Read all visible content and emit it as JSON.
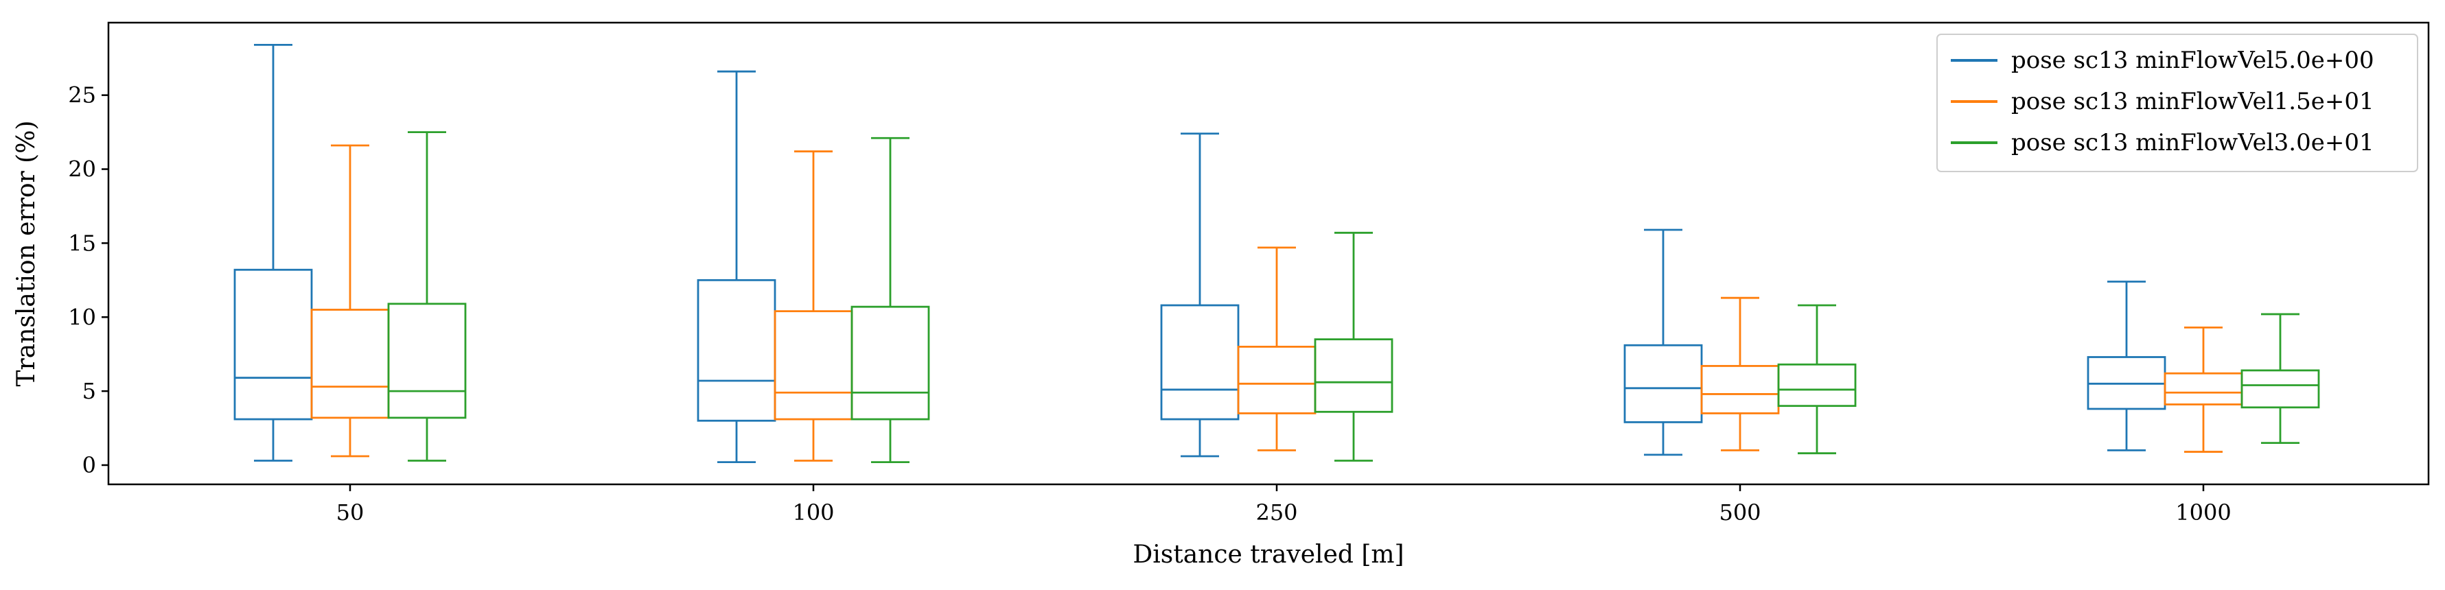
{
  "chart_data": {
    "type": "box",
    "xlabel": "Distance traveled [m]",
    "ylabel": "Translation error (%)",
    "categories": [
      "50",
      "100",
      "250",
      "500",
      "1000"
    ],
    "y_ticks": [
      "0",
      "5",
      "10",
      "15",
      "20",
      "25"
    ],
    "ylim": [
      -1.3,
      29.9
    ],
    "grid": false,
    "legend_position": "top-right",
    "series": [
      {
        "name": "pose sc13 minFlowVel5.0e+00",
        "color": "#1f77b4",
        "boxes": [
          {
            "whislo": 0.3,
            "q1": 3.1,
            "med": 5.9,
            "q3": 13.2,
            "whishi": 28.4
          },
          {
            "whislo": 0.2,
            "q1": 3.0,
            "med": 5.7,
            "q3": 12.5,
            "whishi": 26.6
          },
          {
            "whislo": 0.6,
            "q1": 3.1,
            "med": 5.1,
            "q3": 10.8,
            "whishi": 22.4
          },
          {
            "whislo": 0.7,
            "q1": 2.9,
            "med": 5.2,
            "q3": 8.1,
            "whishi": 15.9
          },
          {
            "whislo": 1.0,
            "q1": 3.8,
            "med": 5.5,
            "q3": 7.3,
            "whishi": 12.4
          }
        ]
      },
      {
        "name": "pose sc13 minFlowVel1.5e+01",
        "color": "#ff7f0e",
        "boxes": [
          {
            "whislo": 0.6,
            "q1": 3.2,
            "med": 5.3,
            "q3": 10.5,
            "whishi": 21.6
          },
          {
            "whislo": 0.3,
            "q1": 3.1,
            "med": 4.9,
            "q3": 10.4,
            "whishi": 21.2
          },
          {
            "whislo": 1.0,
            "q1": 3.5,
            "med": 5.5,
            "q3": 8.0,
            "whishi": 14.7
          },
          {
            "whislo": 1.0,
            "q1": 3.5,
            "med": 4.8,
            "q3": 6.7,
            "whishi": 11.3
          },
          {
            "whislo": 0.9,
            "q1": 4.1,
            "med": 4.9,
            "q3": 6.2,
            "whishi": 9.3
          }
        ]
      },
      {
        "name": "pose sc13 minFlowVel3.0e+01",
        "color": "#2ca02c",
        "boxes": [
          {
            "whislo": 0.3,
            "q1": 3.2,
            "med": 5.0,
            "q3": 10.9,
            "whishi": 22.5
          },
          {
            "whislo": 0.2,
            "q1": 3.1,
            "med": 4.9,
            "q3": 10.7,
            "whishi": 22.1
          },
          {
            "whislo": 0.3,
            "q1": 3.6,
            "med": 5.6,
            "q3": 8.5,
            "whishi": 15.7
          },
          {
            "whislo": 0.8,
            "q1": 4.0,
            "med": 5.1,
            "q3": 6.8,
            "whishi": 10.8
          },
          {
            "whislo": 1.5,
            "q1": 3.9,
            "med": 5.4,
            "q3": 6.4,
            "whishi": 10.2
          }
        ]
      }
    ]
  }
}
